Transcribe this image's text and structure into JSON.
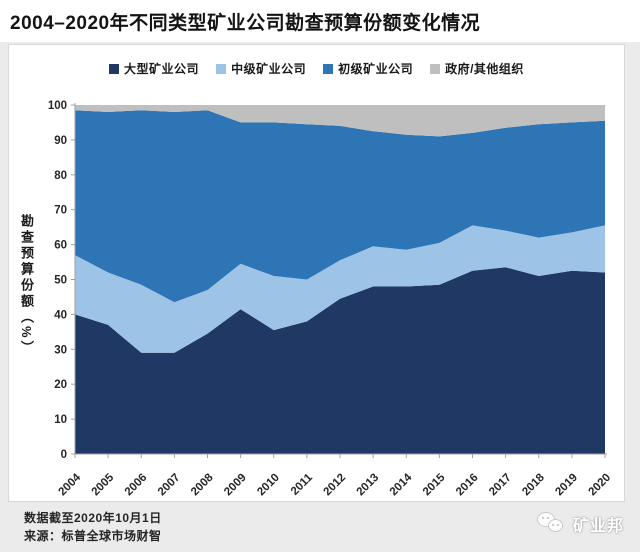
{
  "header": {
    "title": "2004–2020年不同类型矿业公司勘查预算份额变化情况"
  },
  "colors": {
    "large_miners": "#1f3864",
    "mid_miners": "#9dc3e6",
    "junior_miners": "#2e75b6",
    "government_other": "#bfbfbf",
    "axis": "#a0a0a0",
    "tick_text": "#262626",
    "panel": "#ffffff",
    "page_background": "#ebebeb"
  },
  "chart_data": {
    "type": "area",
    "stacked": true,
    "title": "2004–2020年不同类型矿业公司勘查预算份额变化情况",
    "xlabel": "",
    "ylabel": "勘查预算份额（%）",
    "ylim": [
      0,
      100
    ],
    "ytick_interval": 10,
    "grid": false,
    "legend_position": "top",
    "categories": [
      2004,
      2005,
      2006,
      2007,
      2008,
      2009,
      2010,
      2011,
      2012,
      2013,
      2014,
      2015,
      2016,
      2017,
      2018,
      2019,
      2020
    ],
    "series": [
      {
        "id": "large-miners",
        "name": "大型矿业公司",
        "color": "#1f3864",
        "values": [
          40,
          37,
          29,
          29,
          34.5,
          41.5,
          35.5,
          38,
          44.5,
          48,
          48,
          48.5,
          52.5,
          53.5,
          51,
          52.5,
          52
        ]
      },
      {
        "id": "mid-miners",
        "name": "中级矿业公司",
        "color": "#9dc3e6",
        "values": [
          17,
          15,
          19.5,
          14.5,
          12.5,
          13,
          15.5,
          12,
          11,
          11.5,
          10.5,
          12,
          13,
          10.5,
          11,
          11,
          13.5
        ]
      },
      {
        "id": "junior-miners",
        "name": "初级矿业公司",
        "color": "#2e75b6",
        "values": [
          41.5,
          46,
          50,
          54.5,
          51.5,
          40.5,
          44,
          44.5,
          38.5,
          33,
          33,
          30.5,
          26.5,
          29.5,
          32.5,
          31.5,
          30
        ]
      },
      {
        "id": "government-other",
        "name": "政府/其他组织",
        "color": "#bfbfbf",
        "values": [
          1.5,
          2,
          1.5,
          2,
          1.5,
          5,
          5,
          5.5,
          6,
          7.5,
          8.5,
          9,
          8,
          6.5,
          5.5,
          5,
          4.5
        ]
      }
    ]
  },
  "footer": {
    "note": "数据截至2020年10月1日",
    "source": "来源：标普全球市场财智",
    "brand": "矿业邦"
  }
}
